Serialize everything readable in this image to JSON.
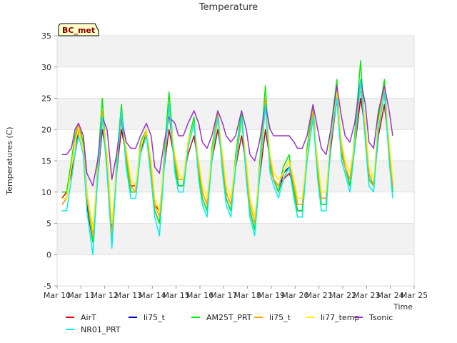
{
  "chart_data": {
    "type": "line",
    "title": "Temperature",
    "xlabel": "Time",
    "ylabel": "Temperatures (C)",
    "badge": "BC_met",
    "xlim": [
      10,
      25
    ],
    "ylim": [
      -5,
      35
    ],
    "x_ticks": [
      10,
      11,
      12,
      13,
      14,
      15,
      16,
      17,
      18,
      19,
      20,
      21,
      22,
      23,
      24,
      25
    ],
    "x_tick_labels": [
      "Mar 10",
      "Mar 11",
      "Mar 12",
      "Mar 13",
      "Mar 14",
      "Mar 15",
      "Mar 16",
      "Mar 17",
      "Mar 18",
      "Mar 19",
      "Mar 20",
      "Mar 21",
      "Mar 22",
      "Mar 23",
      "Mar 24",
      "Mar 25"
    ],
    "y_ticks": [
      -5,
      0,
      5,
      10,
      15,
      20,
      25,
      30,
      35
    ],
    "y_tick_labels": [
      "-5",
      "0",
      "5",
      "10",
      "15",
      "20",
      "25",
      "30",
      "35"
    ],
    "grid": true,
    "legend_position": "bottom",
    "x": [
      10.2,
      10.4,
      10.6,
      10.75,
      10.9,
      11.1,
      11.25,
      11.5,
      11.7,
      11.9,
      12.1,
      12.3,
      12.5,
      12.7,
      12.9,
      13.1,
      13.3,
      13.5,
      13.75,
      13.95,
      14.1,
      14.3,
      14.5,
      14.7,
      14.95,
      15.1,
      15.3,
      15.5,
      15.75,
      15.95,
      16.1,
      16.3,
      16.5,
      16.75,
      16.95,
      17.1,
      17.3,
      17.5,
      17.75,
      17.95,
      18.1,
      18.3,
      18.5,
      18.75,
      18.95,
      19.1,
      19.3,
      19.5,
      19.75,
      19.95,
      20.1,
      20.3,
      20.5,
      20.75,
      20.95,
      21.1,
      21.3,
      21.5,
      21.75,
      21.95,
      22.1,
      22.3,
      22.5,
      22.75,
      22.95,
      23.1,
      23.3,
      23.5,
      23.75,
      23.95,
      24.1
    ],
    "series": [
      {
        "name": "AirT",
        "color": "#dd0000",
        "values": [
          9,
          10,
          13,
          16,
          20,
          18,
          10,
          4,
          12,
          20,
          15,
          4,
          13,
          20,
          16,
          11,
          11,
          16,
          20,
          14,
          8,
          7,
          14,
          20,
          15,
          12,
          12,
          16,
          19,
          14,
          10,
          8,
          15,
          20,
          15,
          10,
          8,
          14,
          19,
          14,
          9,
          6,
          12,
          20,
          15,
          12,
          11,
          12,
          13,
          11,
          8,
          8,
          15,
          22,
          14,
          9,
          9,
          17,
          25,
          17,
          14,
          12,
          17,
          25,
          20,
          13,
          11,
          19,
          24,
          17,
          11
        ]
      },
      {
        "name": "li75_t",
        "color": "#0000cc",
        "values": [
          8,
          9,
          14,
          18,
          20,
          17,
          8,
          2,
          13,
          22,
          14,
          2,
          14,
          22,
          15,
          10,
          10,
          17,
          20,
          13,
          7,
          5,
          15,
          23,
          14,
          11,
          11,
          18,
          21,
          13,
          9,
          7,
          16,
          22,
          14,
          9,
          7,
          15,
          22,
          13,
          7,
          4,
          13,
          24,
          14,
          12,
          10,
          13,
          14,
          10,
          7,
          7,
          16,
          23,
          13,
          8,
          8,
          19,
          26,
          16,
          14,
          11,
          18,
          27,
          19,
          12,
          11,
          21,
          26,
          16,
          10
        ]
      },
      {
        "name": "AM25T_PRT",
        "color": "#00ee00",
        "values": [
          10,
          10,
          15,
          19,
          21,
          18,
          9,
          2,
          14,
          25,
          14,
          2,
          15,
          24,
          15,
          10,
          10,
          18,
          20,
          13,
          7,
          5,
          16,
          26,
          14,
          11,
          11,
          18,
          22,
          13,
          9,
          7,
          17,
          23,
          14,
          9,
          7,
          16,
          23,
          13,
          7,
          4,
          14,
          27,
          14,
          12,
          10,
          14,
          16,
          10,
          7,
          7,
          17,
          24,
          13,
          8,
          8,
          20,
          28,
          16,
          14,
          11,
          19,
          31,
          19,
          12,
          11,
          22,
          28,
          16,
          10
        ]
      },
      {
        "name": "li75_t",
        "color": "#ffa500",
        "values": [
          8,
          9,
          14,
          18,
          21,
          17,
          9,
          3,
          13,
          23,
          15,
          3,
          14,
          23,
          16,
          11,
          10,
          17,
          20,
          14,
          8,
          6,
          15,
          24,
          15,
          12,
          12,
          18,
          21,
          14,
          10,
          8,
          16,
          23,
          15,
          10,
          8,
          15,
          22,
          14,
          8,
          5,
          13,
          25,
          15,
          12,
          11,
          13,
          15,
          11,
          8,
          8,
          16,
          23,
          14,
          9,
          9,
          19,
          27,
          17,
          14,
          12,
          18,
          28,
          20,
          13,
          11,
          21,
          27,
          17,
          11
        ]
      },
      {
        "name": "li77_temp",
        "color": "#ffee00",
        "values": [
          9,
          9,
          14,
          18,
          20,
          17,
          10,
          4,
          13,
          22,
          16,
          5,
          14,
          22,
          17,
          12,
          11,
          17,
          20,
          15,
          9,
          7,
          15,
          23,
          16,
          13,
          12,
          18,
          21,
          15,
          11,
          9,
          16,
          22,
          16,
          11,
          9,
          15,
          21,
          15,
          9,
          6,
          13,
          24,
          16,
          13,
          12,
          13,
          15,
          12,
          9,
          9,
          16,
          22,
          15,
          10,
          10,
          19,
          26,
          18,
          15,
          13,
          18,
          27,
          21,
          14,
          12,
          21,
          26,
          18,
          12
        ]
      },
      {
        "name": "Tsonic",
        "color": "#9933cc",
        "values": [
          16,
          16,
          17,
          20,
          21,
          19,
          13,
          11,
          15,
          22,
          20,
          12,
          16,
          22,
          18,
          17,
          17,
          19,
          21,
          19,
          14,
          13,
          18,
          22,
          21,
          19,
          19,
          21,
          23,
          21,
          18,
          17,
          19,
          23,
          21,
          19,
          18,
          19,
          23,
          20,
          16,
          15,
          18,
          24,
          20,
          19,
          19,
          19,
          19,
          18,
          17,
          17,
          19,
          24,
          20,
          17,
          16,
          20,
          27,
          22,
          19,
          18,
          21,
          28,
          24,
          18,
          17,
          23,
          27,
          23,
          19
        ]
      },
      {
        "name": "NR01_PRT",
        "color": "#00eeee",
        "values": [
          7,
          7,
          12,
          16,
          19,
          16,
          7,
          0,
          12,
          22,
          13,
          1,
          13,
          23,
          14,
          9,
          9,
          16,
          19,
          12,
          6,
          3,
          14,
          24,
          13,
          10,
          10,
          17,
          21,
          12,
          8,
          6,
          15,
          22,
          13,
          8,
          6,
          14,
          22,
          12,
          6,
          3,
          12,
          24,
          13,
          11,
          9,
          12,
          14,
          9,
          6,
          6,
          15,
          22,
          12,
          7,
          7,
          18,
          25,
          15,
          13,
          10,
          17,
          28,
          18,
          11,
          10,
          20,
          26,
          15,
          9
        ]
      }
    ]
  }
}
